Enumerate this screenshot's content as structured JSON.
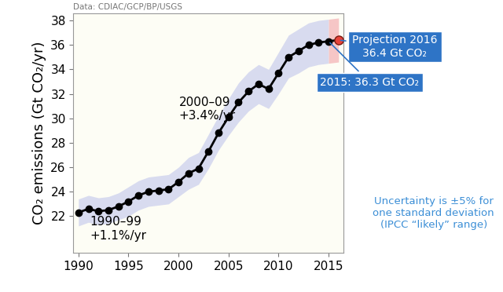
{
  "chart_data": {
    "type": "line",
    "source": "Data: CDIAC/GCP/BP/USGS",
    "ylabel": "CO₂ emissions (Gt CO₂/yr)",
    "xlim": [
      1989.5,
      2016.5
    ],
    "xticks": [
      1990,
      1995,
      2000,
      2005,
      2010,
      2015
    ],
    "ylim": [
      19,
      38.6
    ],
    "yticks": [
      22,
      24,
      26,
      28,
      30,
      32,
      34,
      36,
      38
    ],
    "grid": false,
    "series": [
      {
        "color": "#000000",
        "marker": "o",
        "x": [
          1990,
          1991,
          1992,
          1993,
          1994,
          1995,
          1996,
          1997,
          1998,
          1999,
          2000,
          2001,
          2002,
          2003,
          2004,
          2005,
          2006,
          2007,
          2008,
          2009,
          2010,
          2011,
          2012,
          2013,
          2014,
          2015
        ],
        "values": [
          22.3,
          22.6,
          22.4,
          22.5,
          22.8,
          23.2,
          23.7,
          24.0,
          24.1,
          24.2,
          24.8,
          25.5,
          25.9,
          27.3,
          28.8,
          30.1,
          31.3,
          32.2,
          32.8,
          32.4,
          33.7,
          35.0,
          35.5,
          36.0,
          36.2,
          36.3
        ],
        "lower": [
          21.2,
          21.5,
          21.3,
          21.4,
          21.7,
          22.0,
          22.5,
          22.8,
          22.9,
          23.0,
          23.6,
          24.2,
          24.6,
          25.9,
          27.4,
          28.6,
          29.7,
          30.6,
          31.2,
          30.8,
          32.0,
          33.3,
          33.7,
          34.2,
          34.4,
          34.5
        ],
        "upper": [
          23.4,
          23.7,
          23.5,
          23.6,
          23.9,
          24.4,
          24.9,
          25.2,
          25.3,
          25.4,
          26.0,
          26.8,
          27.2,
          28.7,
          30.2,
          31.6,
          32.9,
          33.8,
          34.4,
          34.0,
          35.4,
          36.8,
          37.3,
          37.8,
          38.0,
          38.1
        ]
      },
      {
        "color": "#e8433a",
        "marker": "o",
        "x": [
          2016
        ],
        "values": [
          36.4
        ],
        "lower": [
          34.6
        ],
        "upper": [
          38.2
        ]
      }
    ],
    "period_labels": [
      "1990–99\n+1.1%/yr",
      "2000–09\n+3.4%/yr"
    ],
    "callouts": [
      "Projection 2016\n36.4 Gt CO₂",
      "2015: 36.3 Gt CO₂"
    ],
    "note": "Uncertainty is ±5% for\none standard deviation\n(IPCC “likely” range)"
  }
}
